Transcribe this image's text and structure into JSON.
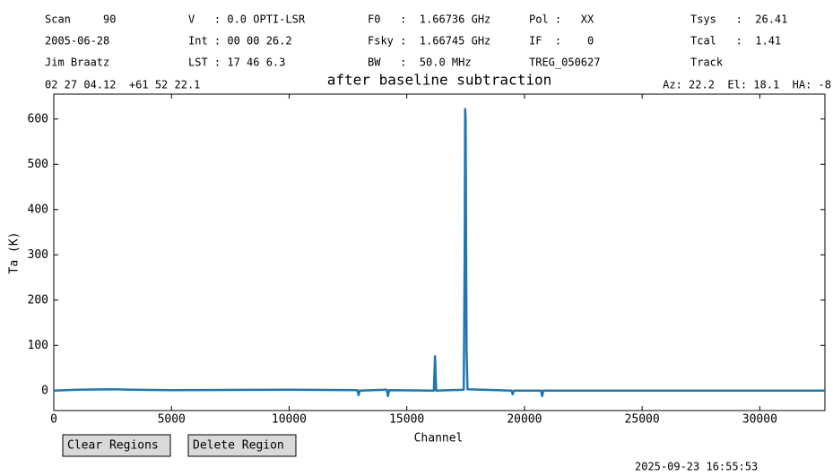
{
  "header": {
    "rows": [
      [
        "Scan     90",
        "V   : 0.0 OPTI-LSR",
        "F0   :  1.66736 GHz",
        "Pol :   XX",
        "Tsys   :  26.41"
      ],
      [
        "2005-06-28",
        "Int : 00 00 26.2",
        "Fsky :  1.66745 GHz",
        "IF  :    0",
        "Tcal   :  1.41"
      ],
      [
        "Jim Braatz",
        "LST : 17 46 6.3",
        "BW   :  50.0 MHz",
        "TREG_050627",
        "Track"
      ]
    ],
    "position": "02 27 04.12  +61 52 22.1",
    "pointing": "Az: 22.2  El: 18.1  HA: -8"
  },
  "chart_data": {
    "type": "line",
    "title": "after baseline subtraction",
    "x_label": "Channel",
    "y_label": "Ta (K)",
    "color": "#1f77b4",
    "x": [
      0,
      1000,
      2500,
      3300,
      5000,
      10000,
      12900,
      12950,
      13000,
      14150,
      14200,
      14250,
      16150,
      16200,
      16250,
      17420,
      17460,
      17480,
      17500,
      17520,
      17540,
      17580,
      19450,
      19500,
      19550,
      20700,
      20750,
      20800,
      25000,
      30000,
      32768
    ],
    "values": [
      0,
      2,
      3,
      2,
      1,
      2,
      1,
      -10,
      0,
      2,
      -12,
      1,
      0,
      76,
      0,
      2,
      300,
      622,
      600,
      320,
      90,
      3,
      0,
      -8,
      0,
      0,
      -12,
      0,
      0,
      0,
      0
    ],
    "xlim": [
      0,
      32768
    ],
    "ylim": [
      -44,
      655
    ],
    "xticks": [
      0,
      5000,
      10000,
      15000,
      20000,
      25000,
      30000
    ],
    "yticks": [
      0,
      100,
      200,
      300,
      400,
      500,
      600
    ]
  },
  "buttons": [
    "Clear Regions",
    "Delete Region"
  ],
  "timestamp": "2025-09-23 16:55:53"
}
